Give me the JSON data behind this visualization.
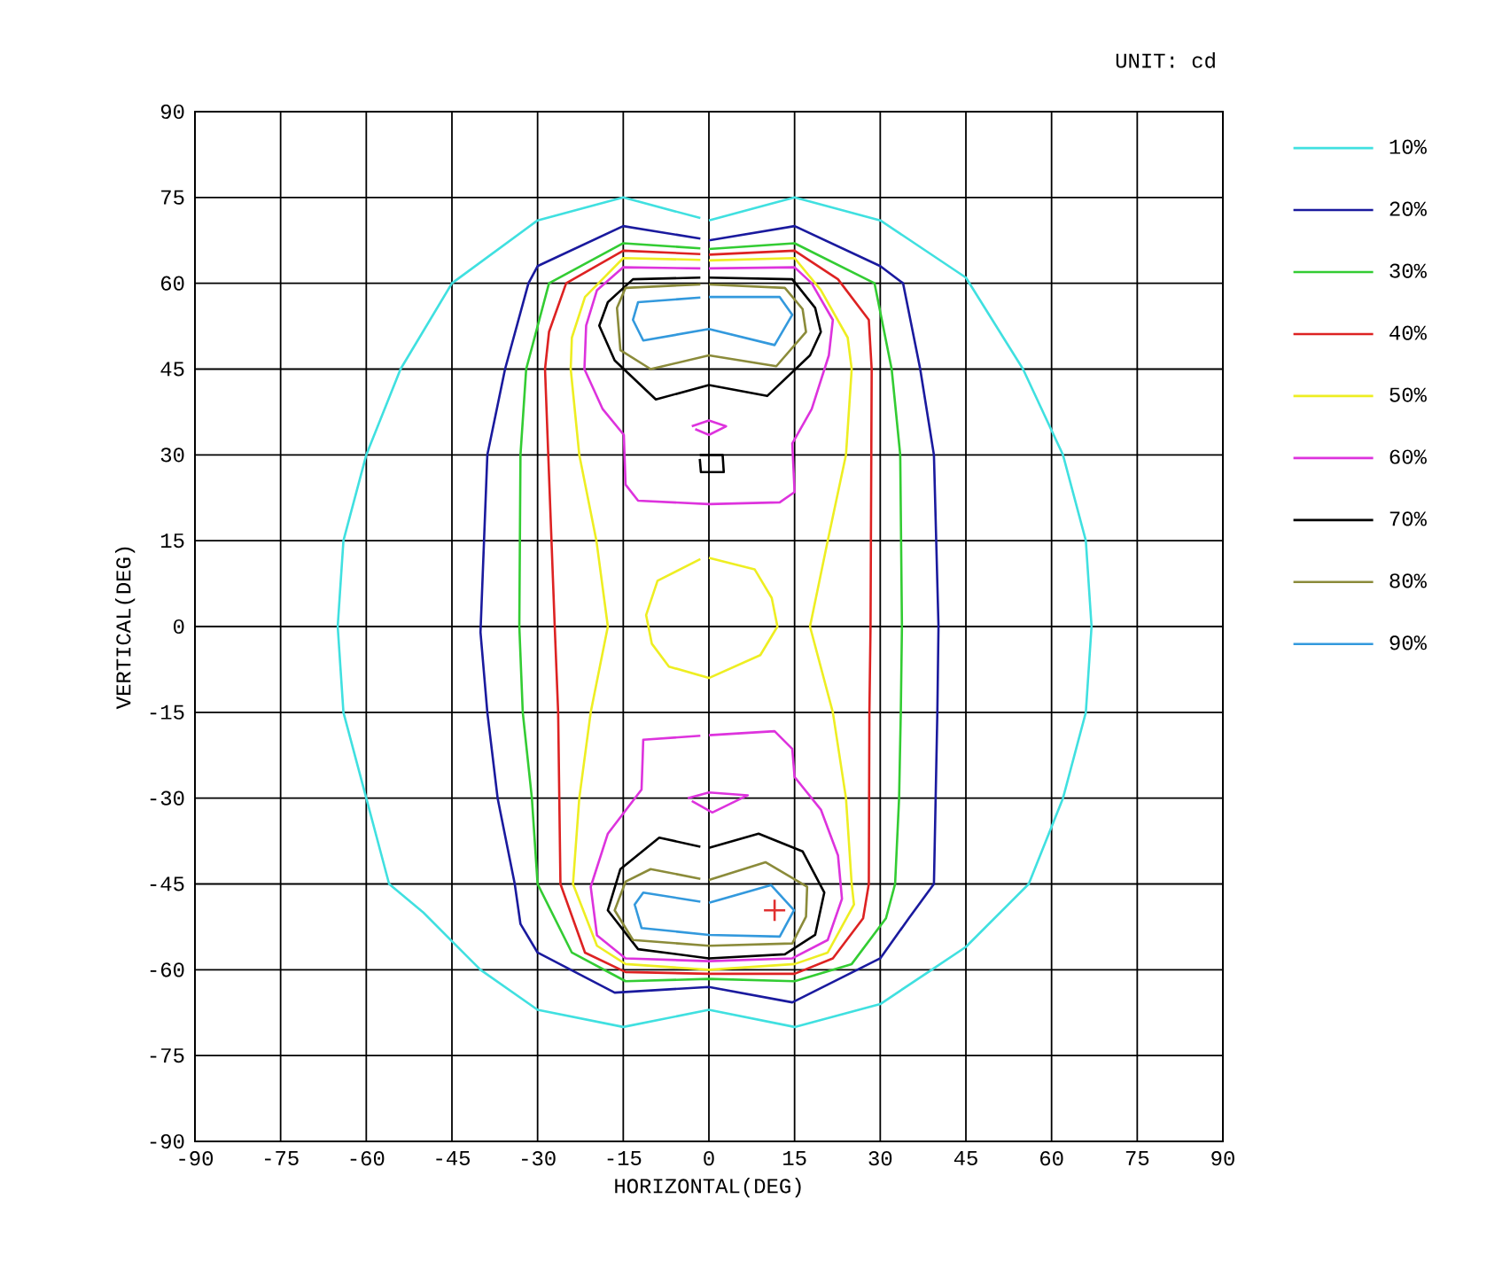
{
  "chart_data": {
    "type": "line",
    "xlabel": "HORIZONTAL(DEG)",
    "ylabel": "VERTICAL(DEG)",
    "annotations": [
      "UNIT: cd"
    ],
    "xlim": [
      -90,
      90
    ],
    "ylim": [
      -90,
      90
    ],
    "xticks": [
      -90,
      -75,
      -60,
      -45,
      -30,
      -15,
      0,
      15,
      30,
      45,
      60,
      75,
      90
    ],
    "yticks": [
      -90,
      -75,
      -60,
      -45,
      -30,
      -15,
      0,
      15,
      30,
      45,
      60,
      75,
      90
    ],
    "grid": true,
    "legend": "right",
    "line_style": "solid",
    "series": [
      {
        "name": "10%",
        "color": "#40e0e0",
        "x": [
          0,
          15,
          30,
          45,
          55,
          62,
          66,
          67,
          66,
          62,
          56,
          45,
          39,
          30,
          15,
          0,
          -15,
          -30,
          -40,
          -50,
          -56,
          -60,
          -64,
          -65,
          -64,
          -60,
          -54,
          -45,
          -30,
          -15,
          -1.5
        ],
        "values": [
          71,
          75,
          71,
          61,
          45,
          30,
          15,
          0,
          -15,
          -30,
          -45,
          -56,
          -60,
          -66,
          -70,
          -67,
          -70,
          -67,
          -60,
          -50,
          -45,
          -30,
          -15,
          0,
          15,
          30,
          45,
          60,
          71,
          75,
          71.4
        ]
      },
      {
        "name": "20%",
        "color": "#1a1a9e",
        "x": [
          0,
          15,
          30,
          34,
          37,
          39.4,
          40.2,
          40,
          39.7,
          39.4,
          35,
          30,
          14.6,
          0,
          -16.5,
          -30,
          -33,
          -34,
          -37,
          -38.8,
          -40,
          -38.8,
          -35.7,
          -31.6,
          -30,
          -15,
          -1.5
        ],
        "values": [
          67.5,
          70,
          63,
          60,
          45,
          30,
          0,
          -15,
          -30,
          -45,
          -51,
          -58,
          -65.7,
          -63,
          -64,
          -57,
          -52,
          -45,
          -30,
          -15,
          -1,
          30,
          45,
          60,
          63,
          70,
          67.8
        ]
      },
      {
        "name": "30%",
        "color": "#33cc33",
        "x": [
          0,
          15,
          29,
          32,
          33.5,
          33.8,
          33.6,
          33.3,
          32.6,
          31,
          25,
          15,
          0,
          -14.6,
          -24,
          -30,
          -31,
          -32.6,
          -33.2,
          -33,
          -32,
          -28,
          -15,
          -1.5
        ],
        "values": [
          66,
          67,
          60,
          45,
          30,
          0,
          -15,
          -30,
          -45,
          -51,
          -59,
          -62,
          -61.6,
          -62,
          -57,
          -45,
          -30,
          -15,
          0,
          30,
          45,
          60,
          67,
          66.1
        ]
      },
      {
        "name": "40%",
        "color": "#dd2222",
        "x": [
          0,
          15,
          22.6,
          28,
          28.5,
          28.3,
          28.1,
          28,
          27,
          21.7,
          15,
          0,
          -14.6,
          -21.7,
          -26,
          -26.2,
          -26.4,
          -27,
          -28.7,
          -28,
          -25,
          -15,
          -1.5
        ],
        "values": [
          65,
          65.7,
          60.7,
          53.6,
          45,
          0,
          -15,
          -45,
          -51,
          -58,
          -60.7,
          -60.7,
          -60.4,
          -57,
          -45,
          -30,
          -15,
          0,
          45,
          51.5,
          60,
          65.7,
          65.1
        ]
      },
      {
        "name": "50%",
        "color": "#eeee22",
        "x": [
          0,
          15,
          19.6,
          24.3,
          25,
          24,
          20.8,
          17.7,
          21.7,
          24,
          25,
          25.4,
          20.8,
          15,
          0,
          -14.6,
          -19.6,
          -23.8,
          -22.7,
          -20.7,
          -17.7,
          -19.7,
          -22.7,
          -24.2,
          -24,
          -21.7,
          -15,
          -1.5,
          null,
          0,
          8,
          11,
          12,
          9,
          0,
          -7,
          -10,
          -11,
          -9,
          -1.5
        ],
        "values": [
          64,
          64.4,
          58.8,
          50.5,
          45,
          30,
          15,
          0,
          -15,
          -30,
          -45,
          -48.6,
          -57,
          -59,
          -60,
          -59,
          -55.8,
          -45,
          -30,
          -15,
          0,
          15,
          30,
          45,
          50.5,
          57.6,
          64.4,
          64.1,
          null,
          12,
          10,
          5,
          0,
          -5,
          -9,
          -7,
          -3,
          2,
          8,
          11.8
        ]
      },
      {
        "name": "60%",
        "color": "#dd33dd",
        "x": [
          0,
          15,
          18,
          21.7,
          21,
          18,
          14.6,
          15,
          12.4,
          0,
          -12.4,
          -14.6,
          -14.9,
          -18.6,
          -21.8,
          -21.5,
          -19.6,
          -15,
          -1.5,
          null,
          -3,
          0,
          3,
          0,
          -2.4,
          null,
          0,
          11.5,
          14.6,
          15,
          19.6,
          22.6,
          23.3,
          20.8,
          14.6,
          0,
          -14.6,
          -19.6,
          -20.7,
          -17.7,
          -11.8,
          -11.6,
          -11.5,
          -1.5,
          null,
          -3.7,
          0,
          6.8,
          0.6,
          -3
        ],
        "values": [
          62.6,
          62.8,
          60,
          53.6,
          47.4,
          38,
          32,
          23.5,
          21.7,
          21.4,
          22,
          24.8,
          33.5,
          38,
          45,
          52.6,
          58.8,
          62.8,
          62.6,
          null,
          35,
          36,
          35,
          33.5,
          34.5,
          null,
          -19,
          -18.3,
          -21.4,
          -26.3,
          -32,
          -40,
          -47.6,
          -54.8,
          -58,
          -58.5,
          -58,
          -54,
          -45.5,
          -36.2,
          -28.5,
          -22.9,
          -19.8,
          -19.1,
          null,
          -30,
          -29,
          -29.5,
          -32.5,
          -30.5
        ]
      },
      {
        "name": "70%",
        "color": "#000000",
        "x": [
          0,
          14.6,
          18.6,
          19.6,
          17.7,
          10.2,
          0,
          -9.3,
          -16.5,
          -19.2,
          -17.7,
          -13.3,
          -1.5,
          null,
          -1.6,
          2.4,
          2.6,
          -1.4,
          -1.6,
          null,
          0,
          8.7,
          16.4,
          20.2,
          18.6,
          13.3,
          0,
          -12.4,
          -17.7,
          -15.5,
          -8.7,
          -1.5
        ],
        "values": [
          61,
          60.7,
          55.7,
          51.5,
          47.4,
          40.3,
          42.2,
          39.7,
          46.5,
          52.6,
          56.7,
          60.7,
          61,
          null,
          30,
          30,
          27,
          27,
          29.3,
          null,
          -38.7,
          -36.2,
          -39.3,
          -46.5,
          -53.9,
          -57.3,
          -58,
          -56.4,
          -49.6,
          -42.4,
          -36.9,
          -38.5
        ]
      },
      {
        "name": "80%",
        "color": "#8b8b3a",
        "x": [
          0,
          13.3,
          16.4,
          17,
          11.8,
          0,
          -10.2,
          -15.5,
          -16.1,
          -14.6,
          -1.5,
          null,
          0,
          9.9,
          17.2,
          17,
          14.6,
          0,
          -13.3,
          -16.5,
          -14.6,
          -10.2,
          -1.5
        ],
        "values": [
          59.8,
          59.2,
          55.5,
          51.5,
          45.5,
          47.4,
          45,
          48.3,
          55.7,
          59.2,
          59.8,
          null,
          -44.3,
          -41.2,
          -45.5,
          -50.7,
          -55.4,
          -55.8,
          -54.8,
          -49.6,
          -44.6,
          -42.4,
          -44.1
        ]
      },
      {
        "name": "90%",
        "color": "#3399dd",
        "x": [
          0,
          12.4,
          14.6,
          11.5,
          0,
          -11.5,
          -13.3,
          -12.4,
          -1.5,
          null,
          0,
          10.9,
          14.9,
          12.4,
          0,
          -11.8,
          -13,
          -11.5,
          -1.5
        ],
        "values": [
          57.6,
          57.6,
          54.5,
          49.2,
          52,
          50,
          53.6,
          56.7,
          57.5,
          null,
          -48.3,
          -45.2,
          -49.6,
          -54.2,
          -53.9,
          -52.7,
          -48.6,
          -46.5,
          -48.1
        ]
      },
      {
        "type": "scatter",
        "marker": "cross",
        "color": "#e03030",
        "x": [
          11.5
        ],
        "values": [
          -49.6
        ]
      }
    ]
  }
}
